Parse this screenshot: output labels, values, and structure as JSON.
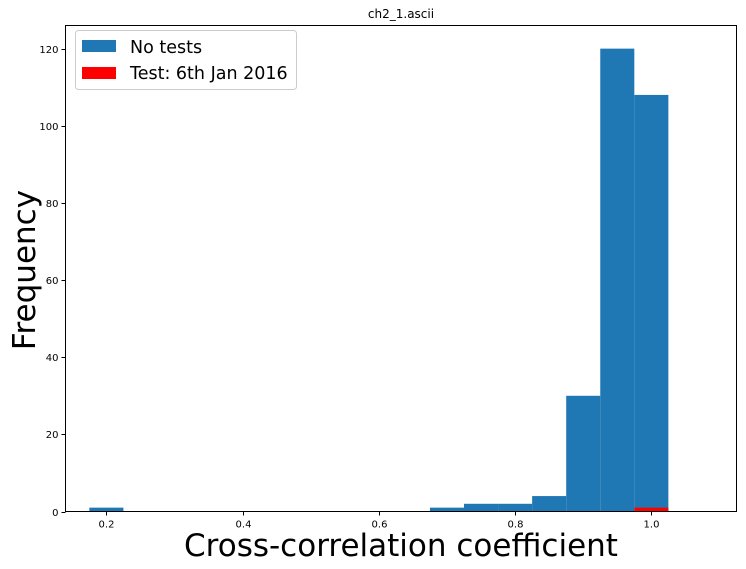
{
  "chart_data": {
    "type": "bar",
    "title": "ch2_1.ascii",
    "xlabel": "Cross-correlation coefficient",
    "ylabel": "Frequency",
    "xlim": [
      0.14,
      1.125
    ],
    "ylim": [
      0,
      126
    ],
    "x_ticks": [
      0.2,
      0.4,
      0.6,
      0.8,
      1.0
    ],
    "x_tick_labels": [
      "0.2",
      "0.4",
      "0.6",
      "0.8",
      "1.0"
    ],
    "y_ticks": [
      0,
      20,
      40,
      60,
      80,
      100,
      120
    ],
    "y_tick_labels": [
      "0",
      "20",
      "40",
      "60",
      "80",
      "100",
      "120"
    ],
    "grid": false,
    "legend_position": "top-left",
    "series": [
      {
        "name": "No tests",
        "color": "#1f77b4",
        "bins": [
          {
            "x0": 0.175,
            "x1": 0.225,
            "value": 1
          },
          {
            "x0": 0.675,
            "x1": 0.725,
            "value": 1
          },
          {
            "x0": 0.725,
            "x1": 0.775,
            "value": 2
          },
          {
            "x0": 0.775,
            "x1": 0.825,
            "value": 2
          },
          {
            "x0": 0.825,
            "x1": 0.875,
            "value": 4
          },
          {
            "x0": 0.875,
            "x1": 0.925,
            "value": 30
          },
          {
            "x0": 0.925,
            "x1": 0.975,
            "value": 120
          },
          {
            "x0": 0.975,
            "x1": 1.025,
            "value": 108
          }
        ]
      },
      {
        "name": "Test: 6th Jan 2016",
        "color": "#ff0000",
        "bins": [
          {
            "x0": 0.975,
            "x1": 1.025,
            "value": 1
          }
        ]
      }
    ]
  }
}
